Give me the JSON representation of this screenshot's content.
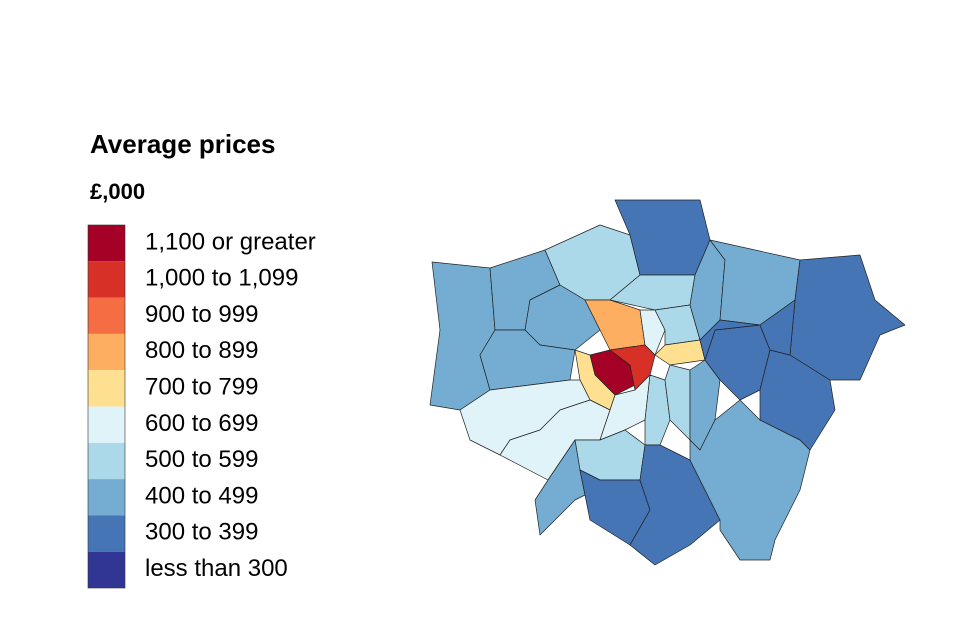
{
  "legend": {
    "title": "Average prices",
    "subtitle": "£,000",
    "items": [
      {
        "label": "1,100 or greater",
        "color": "#a50026"
      },
      {
        "label": "1,000 to 1,099",
        "color": "#d73027"
      },
      {
        "label": "900 to 999",
        "color": "#f46d43"
      },
      {
        "label": "800 to 899",
        "color": "#fdae61"
      },
      {
        "label": "700 to 799",
        "color": "#fee090"
      },
      {
        "label": "600 to 699",
        "color": "#e0f3f8"
      },
      {
        "label": "500 to 599",
        "color": "#abd9e9"
      },
      {
        "label": "400 to 499",
        "color": "#74add1"
      },
      {
        "label": "300 to 399",
        "color": "#4575b4"
      },
      {
        "label": "less than 300",
        "color": "#313695"
      }
    ]
  }
}
